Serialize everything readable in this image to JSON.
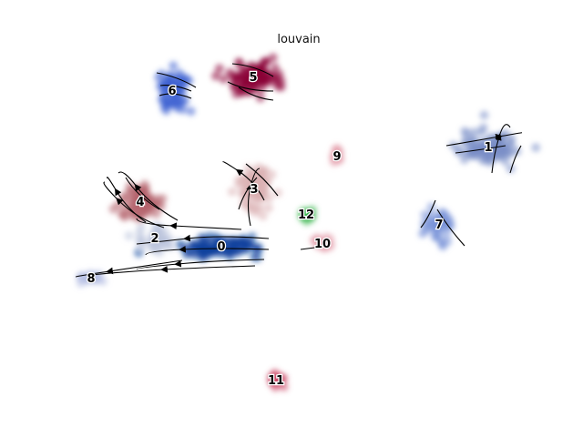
{
  "chart_data": {
    "type": "scatter",
    "title": "louvain",
    "xlabel": "",
    "ylabel": "",
    "grid": false,
    "axes_visible": false,
    "overlay": "velocity streamlines (black, with arrowheads)",
    "clusters": [
      {
        "label": "0",
        "color": "#0b3f9c",
        "center": [
          243,
          271
        ],
        "spread": [
          48,
          12
        ]
      },
      {
        "label": "1",
        "color": "#7a8ec6",
        "center": [
          536,
          162
        ],
        "spread": [
          35,
          18
        ]
      },
      {
        "label": "2",
        "color": "#bcc5dc",
        "center": [
          170,
          262
        ],
        "spread": [
          22,
          14
        ]
      },
      {
        "label": "3",
        "color": "#dbb0b3",
        "center": [
          279,
          208
        ],
        "spread": [
          20,
          26
        ]
      },
      {
        "label": "4",
        "color": "#b5636c",
        "center": [
          154,
          222
        ],
        "spread": [
          26,
          18
        ]
      },
      {
        "label": "5",
        "color": "#8a0836",
        "center": [
          278,
          85
        ],
        "spread": [
          28,
          20
        ]
      },
      {
        "label": "6",
        "color": "#3e62d1",
        "center": [
          189,
          100
        ],
        "spread": [
          18,
          24
        ]
      },
      {
        "label": "7",
        "color": "#7a93d8",
        "center": [
          482,
          247
        ],
        "spread": [
          14,
          22
        ]
      },
      {
        "label": "8",
        "color": "#b7c0e3",
        "center": [
          100,
          306
        ],
        "spread": [
          16,
          9
        ]
      },
      {
        "label": "9",
        "color": "#e6a3ae",
        "center": [
          370,
          172
        ],
        "spread": [
          6,
          10
        ]
      },
      {
        "label": "10",
        "color": "#e6a3ae",
        "center": [
          354,
          268
        ],
        "spread": [
          13,
          6
        ]
      },
      {
        "label": "11",
        "color": "#cc4c6a",
        "center": [
          303,
          418
        ],
        "spread": [
          8,
          8
        ]
      },
      {
        "label": "12",
        "color": "#3bb74f",
        "center": [
          336,
          236
        ],
        "spread": [
          6,
          6
        ]
      }
    ]
  }
}
